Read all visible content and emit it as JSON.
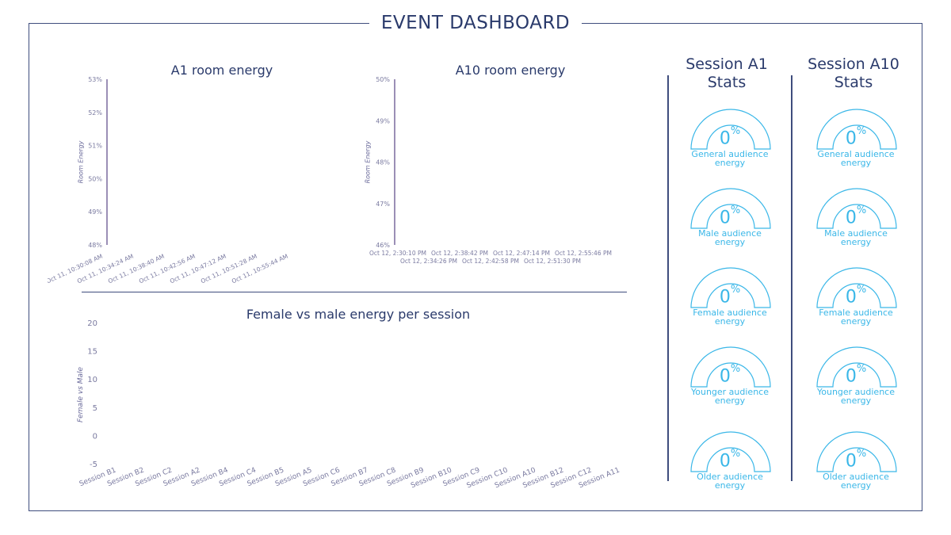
{
  "dashboard_title": "EVENT DASHBOARD",
  "colors": {
    "accent": "#3ab7e8",
    "navy": "#2a3a6b",
    "axis": "#7a6a9e"
  },
  "chart_data": [
    {
      "type": "line",
      "title": "A1 room energy",
      "ylabel": "Room Energy",
      "yticks": [
        "53%",
        "52%",
        "51%",
        "50%",
        "49%",
        "48%"
      ],
      "ylim": [
        48,
        53
      ],
      "categories": [
        "Oct 11, 10:30:08 AM",
        "Oct 11, 10:34:24 AM",
        "Oct 11, 10:38:40 AM",
        "Oct 11, 10:42:56 AM",
        "Oct 11, 10:47:12 AM",
        "Oct 11, 10:51:28 AM",
        "Oct 11, 10:55:44 AM"
      ],
      "series": []
    },
    {
      "type": "line",
      "title": "A10 room energy",
      "ylabel": "Room Energy",
      "yticks": [
        "50%",
        "49%",
        "48%",
        "47%",
        "46%"
      ],
      "ylim": [
        46,
        50
      ],
      "categories": [
        "Oct 12, 2:30:10 PM",
        "Oct 12, 2:34:26 PM",
        "Oct 12, 2:38:42 PM",
        "Oct 12, 2:42:58 PM",
        "Oct 12, 2:47:14 PM",
        "Oct 12, 2:51:30 PM",
        "Oct 12, 2:55:46 PM"
      ],
      "series": []
    },
    {
      "type": "bar",
      "title": "Female vs male energy per session",
      "ylabel": "Female vs Male",
      "yticks": [
        "20",
        "15",
        "10",
        "5",
        "0",
        "-5"
      ],
      "ylim": [
        -5,
        20
      ],
      "categories": [
        "Session B1",
        "Session B2",
        "Session C2",
        "Session A2",
        "Session B4",
        "Session C4",
        "Session B5",
        "Session A5",
        "Session C6",
        "Session B7",
        "Session C8",
        "Session B9",
        "Session B10",
        "Session C9",
        "Session C10",
        "Session A10",
        "Session B12",
        "Session C12",
        "Session A11"
      ],
      "series": []
    }
  ],
  "stats": [
    {
      "title_line1": "Session A1",
      "title_line2": "Stats",
      "gauges": [
        {
          "value": "0",
          "unit": "%",
          "label_line1": "General audience",
          "label_line2": "energy",
          "level": 0
        },
        {
          "value": "0",
          "unit": "%",
          "label_line1": "Male audience",
          "label_line2": "energy",
          "level": 0
        },
        {
          "value": "0",
          "unit": "%",
          "label_line1": "Female audience",
          "label_line2": "energy",
          "level": 0
        },
        {
          "value": "0",
          "unit": "%",
          "label_line1": "Younger audience",
          "label_line2": "energy",
          "level": 0
        },
        {
          "value": "0",
          "unit": "%",
          "label_line1": "Older audience",
          "label_line2": "energy",
          "level": 0
        }
      ]
    },
    {
      "title_line1": "Session A10",
      "title_line2": "Stats",
      "gauges": [
        {
          "value": "0",
          "unit": "%",
          "label_line1": "General audience",
          "label_line2": "energy",
          "level": 0
        },
        {
          "value": "0",
          "unit": "%",
          "label_line1": "Male audience",
          "label_line2": "energy",
          "level": 0
        },
        {
          "value": "0",
          "unit": "%",
          "label_line1": "Female audience",
          "label_line2": "energy",
          "level": 0
        },
        {
          "value": "0",
          "unit": "%",
          "label_line1": "Younger audience",
          "label_line2": "energy",
          "level": 0
        },
        {
          "value": "0",
          "unit": "%",
          "label_line1": "Older audience",
          "label_line2": "energy",
          "level": 0
        }
      ]
    }
  ]
}
